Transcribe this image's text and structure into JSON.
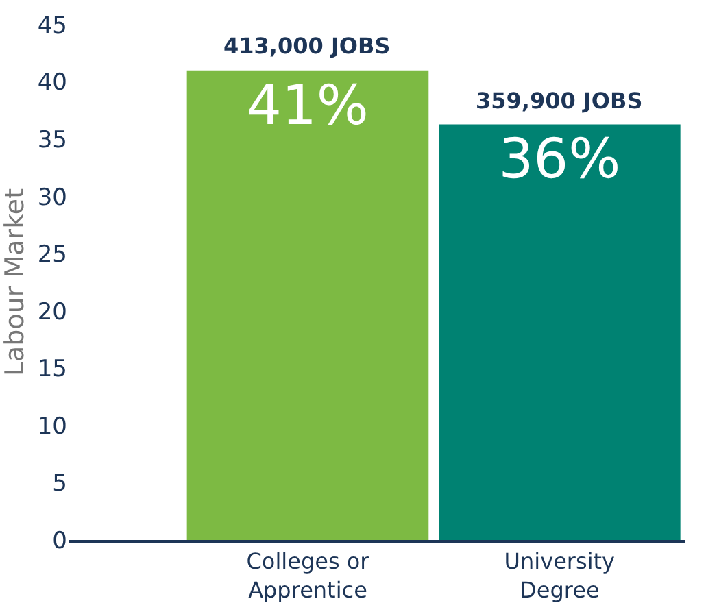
{
  "chart_data": {
    "type": "bar",
    "ylabel": "Labour Market",
    "categories": [
      "Colleges or\nApprentice",
      "University\nDegree"
    ],
    "values": [
      41,
      36.3
    ],
    "colors": [
      "#7dba43",
      "#008272"
    ],
    "value_labels": [
      "41%",
      "36%"
    ],
    "annotations": [
      {
        "text": "413,000 JOBS",
        "x": "Colleges or\nApprentice",
        "y": 41
      },
      {
        "text": "359,900 JOBS",
        "x": "University\nDegree",
        "y": 36.3
      }
    ],
    "ylim": [
      0,
      45
    ],
    "yticks": [
      0,
      5,
      10,
      15,
      20,
      25,
      30,
      35,
      40,
      45
    ],
    "grid": false,
    "legend": false
  }
}
